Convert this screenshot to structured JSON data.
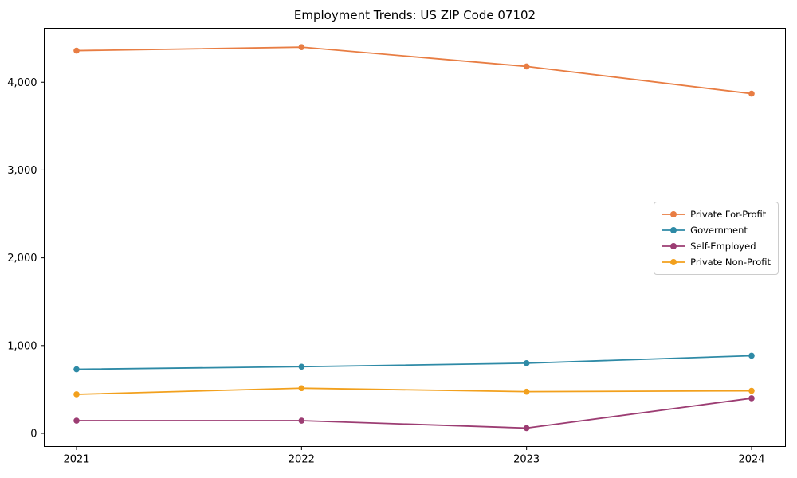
{
  "chart_data": {
    "type": "line",
    "title": "Employment Trends: US ZIP Code 07102",
    "x_categories": [
      "2021",
      "2022",
      "2023",
      "2024"
    ],
    "series": [
      {
        "name": "Private For-Profit",
        "color": "#E87D43",
        "values": [
          4360,
          4400,
          4180,
          3870
        ]
      },
      {
        "name": "Government",
        "color": "#2E8AA6",
        "values": [
          730,
          760,
          800,
          885
        ]
      },
      {
        "name": "Self-Employed",
        "color": "#9C3D73",
        "values": [
          145,
          145,
          60,
          400
        ]
      },
      {
        "name": "Private Non-Profit",
        "color": "#F2A01D",
        "values": [
          445,
          515,
          475,
          485
        ]
      }
    ],
    "xlabel": "",
    "ylabel": "",
    "ylim": [
      -150,
      4620
    ],
    "yticks": {
      "values": [
        0,
        1000,
        2000,
        3000,
        4000
      ],
      "labels": [
        "0",
        "1,000",
        "2,000",
        "3,000",
        "4,000"
      ]
    },
    "grid": false,
    "legend": {
      "position": "center-right",
      "border_color": "#cccccc",
      "background": "#ffffff"
    },
    "marker": "circle"
  }
}
